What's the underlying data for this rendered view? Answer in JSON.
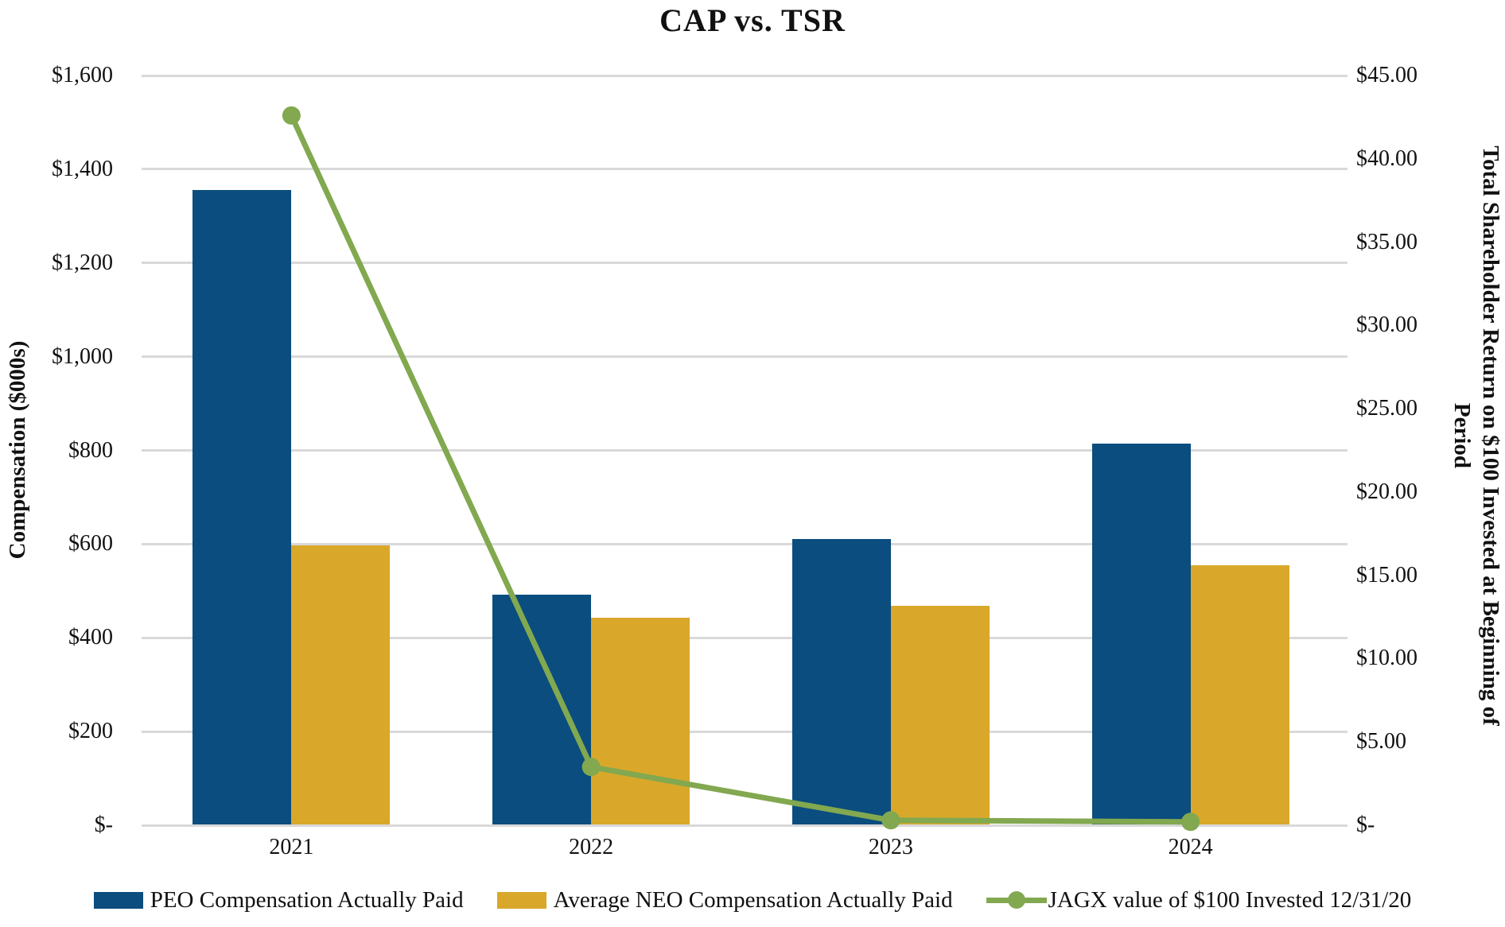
{
  "title": "CAP vs. TSR",
  "chart_data": {
    "type": "combo-bar-line",
    "categories": [
      "2021",
      "2022",
      "2023",
      "2024"
    ],
    "series": [
      {
        "name": "PEO Compensation Actually Paid",
        "type": "bar",
        "axis": "left",
        "color": "#0A4D7E",
        "values": [
          1356,
          492,
          610,
          815
        ]
      },
      {
        "name": "Average NEO Compensation Actually Paid",
        "type": "bar",
        "axis": "left",
        "color": "#D9A82A",
        "values": [
          598,
          442,
          469,
          554
        ]
      },
      {
        "name": "JAGX value of $100 Invested 12/31/20",
        "type": "line",
        "axis": "right",
        "color": "#82A850",
        "values": [
          42.6,
          3.5,
          0.3,
          0.2
        ]
      }
    ],
    "left_axis": {
      "title": "Compensation ($000s)",
      "min": 0,
      "max": 1600,
      "step": 200,
      "tick_labels": [
        "$1,600",
        "$1,400",
        "$1,200",
        "$1,000",
        "$800",
        "$600",
        "$400",
        "$200",
        "$-"
      ]
    },
    "right_axis": {
      "title": "Total Shareholder Return on $100 Invested at Beginning of Period",
      "title_line1": "Total Shareholder Return on $100 Invested at Beginning of",
      "title_line2": "Period",
      "min": 0,
      "max": 45,
      "step": 5,
      "tick_labels": [
        "$45.00",
        "$40.00",
        "$35.00",
        "$30.00",
        "$25.00",
        "$20.00",
        "$15.00",
        "$10.00",
        "$5.00",
        "$-"
      ]
    },
    "grid": true,
    "gridline_color": "#D9D9D9",
    "legend_position": "bottom"
  }
}
